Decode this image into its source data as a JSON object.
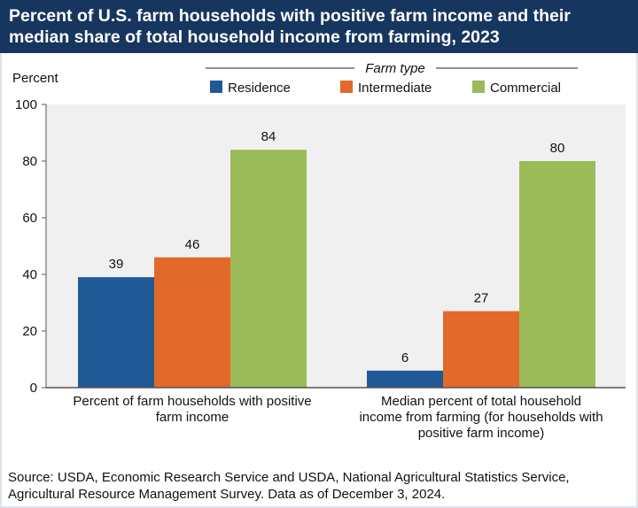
{
  "title": "Percent of U.S. farm households with positive farm income and their median share of total household income from farming, 2023",
  "source": "Source: USDA, Economic Research Service and USDA, National Agricultural Statistics Service, Agricultural Resource Management Survey. Data as of December 3, 2024.",
  "chart_data": {
    "type": "bar",
    "title": "Percent of U.S. farm households with positive farm income and their median share of total household income from farming, 2023",
    "ylabel": "Percent",
    "ylim": [
      0,
      100
    ],
    "yticks": [
      0,
      20,
      40,
      60,
      80,
      100
    ],
    "legend_title": "Farm type",
    "legend_position": "top",
    "grid": false,
    "categories": [
      [
        "Percent of farm households with positive",
        "farm income"
      ],
      [
        "Median percent of total household",
        "income from farming (for households with",
        "positive farm income)"
      ]
    ],
    "series": [
      {
        "name": "Residence",
        "color": "#1f5a97",
        "values": [
          39,
          6
        ]
      },
      {
        "name": "Intermediate",
        "color": "#e2692a",
        "values": [
          46,
          27
        ]
      },
      {
        "name": "Commercial",
        "color": "#9bbb59",
        "values": [
          84,
          80
        ]
      }
    ]
  }
}
